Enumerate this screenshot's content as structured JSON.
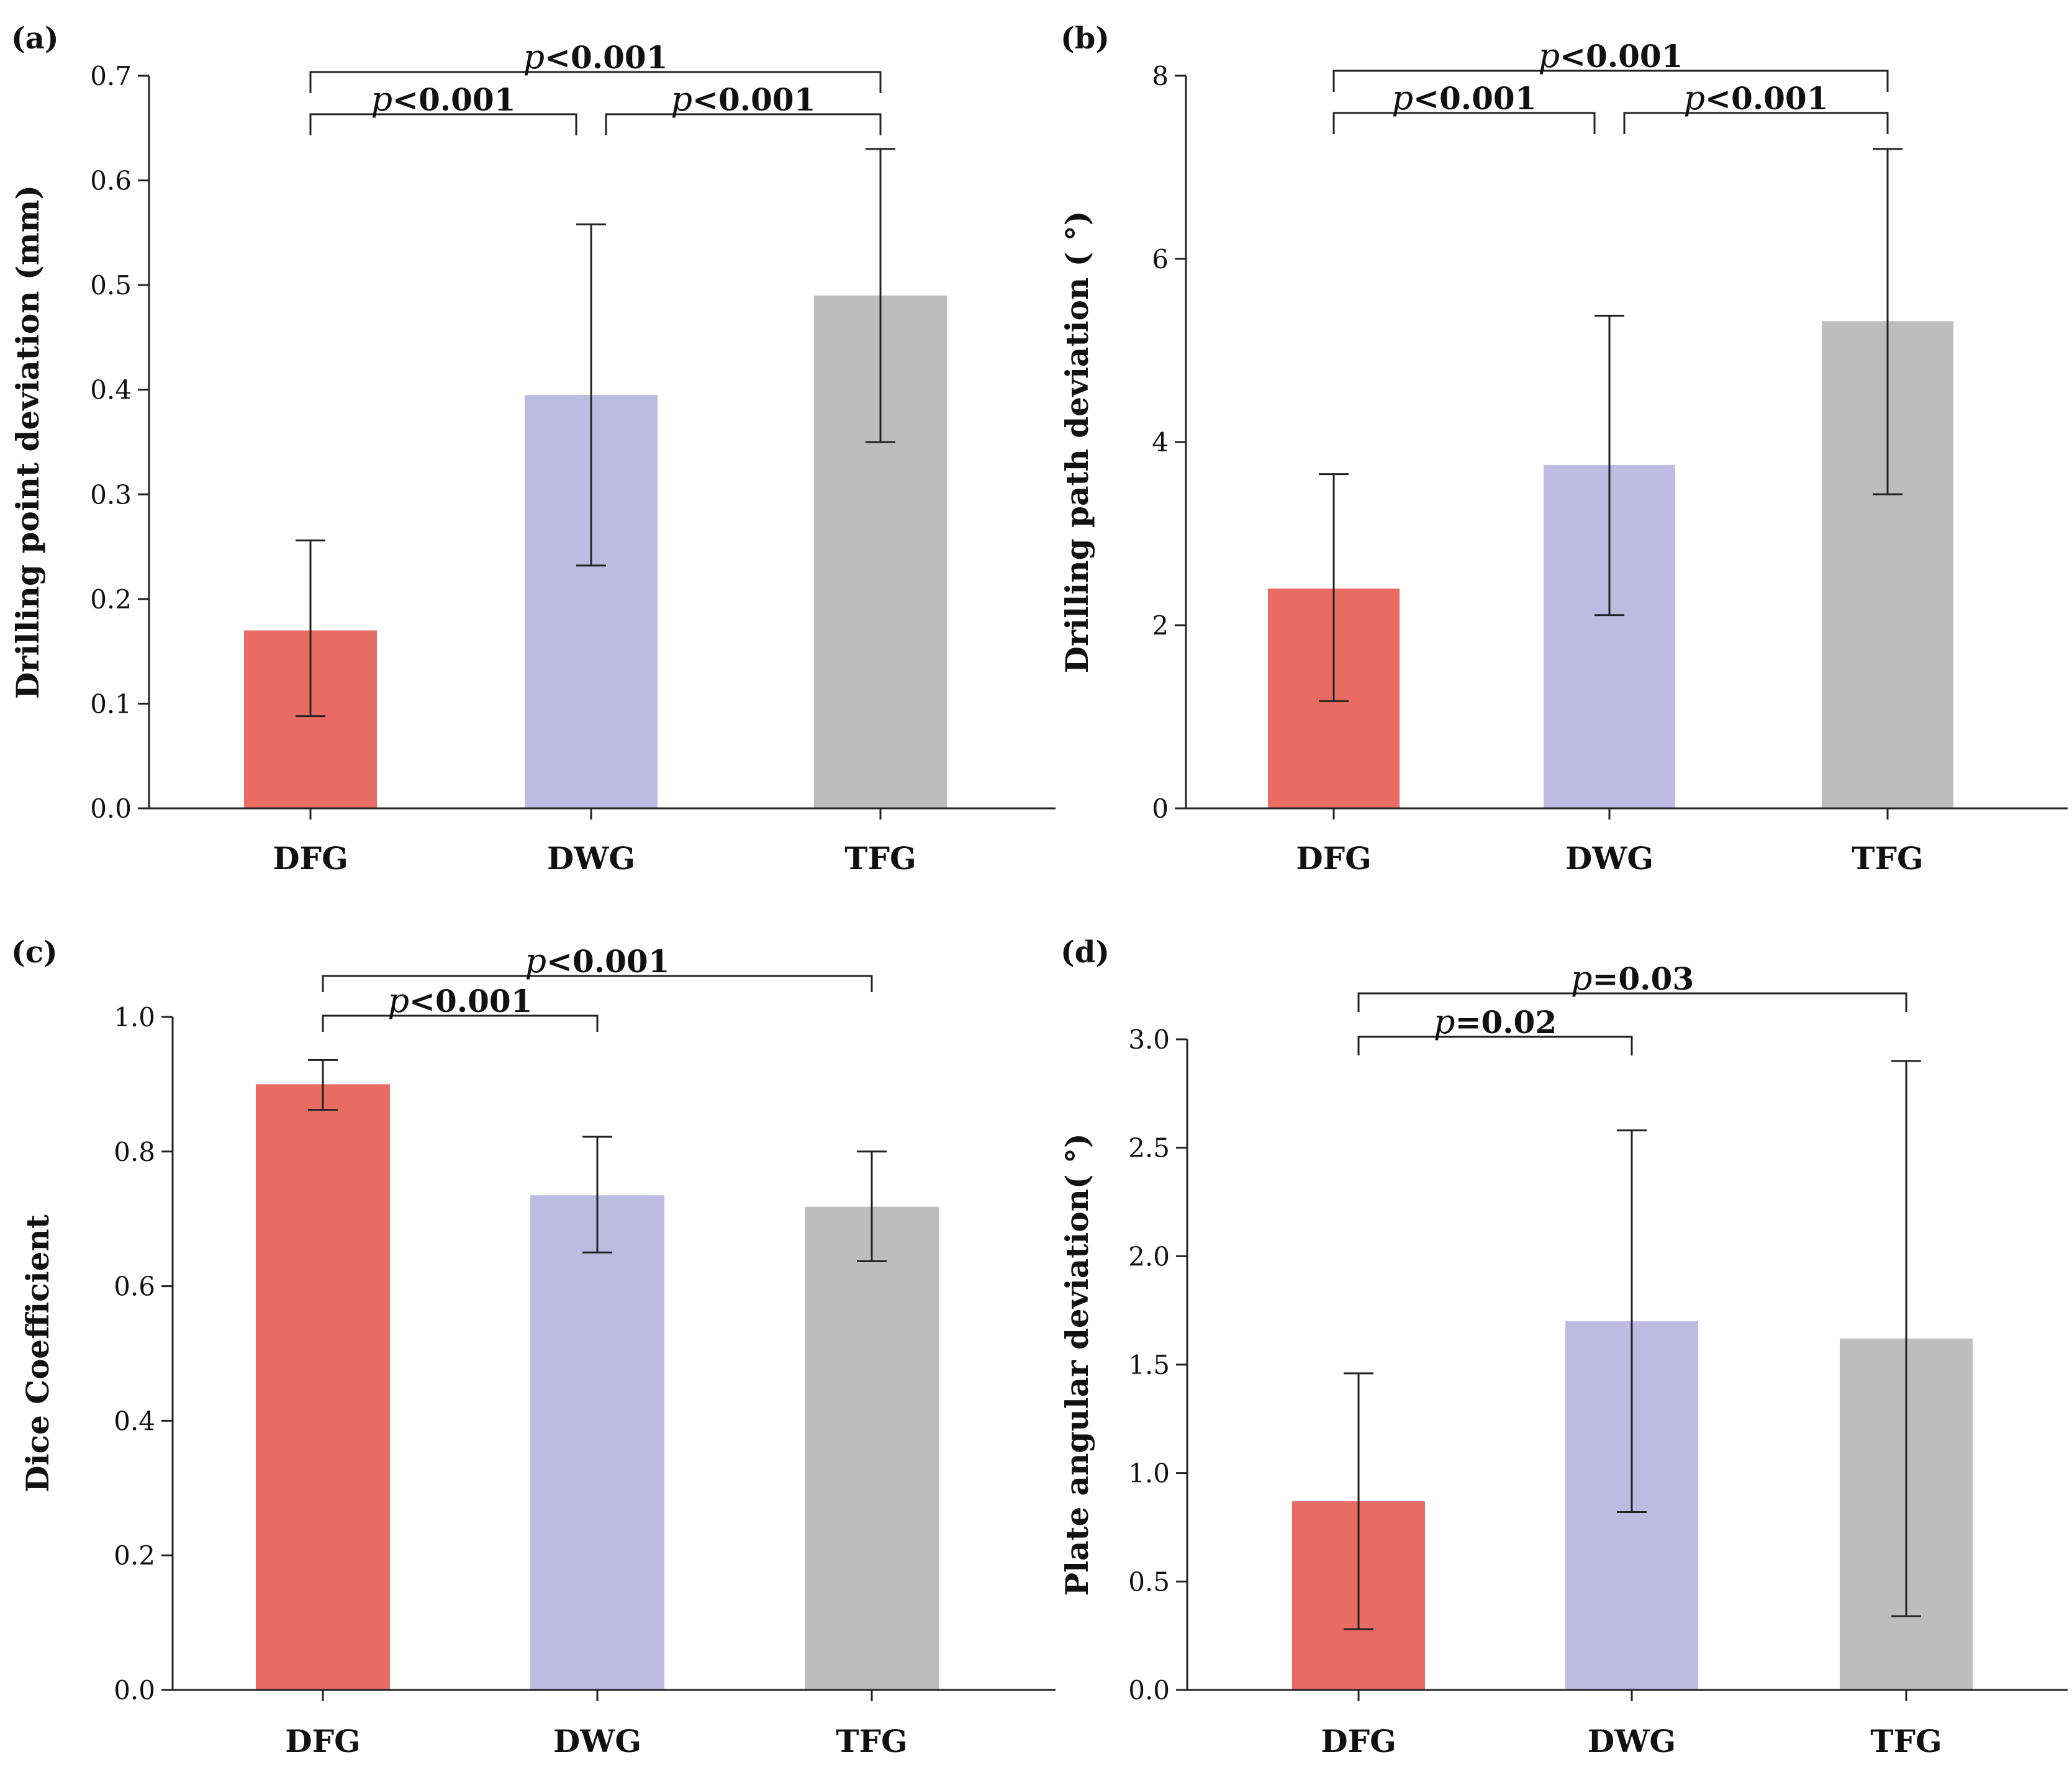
{
  "chart_data": [
    {
      "type": "bar",
      "panel_label": "(a)",
      "categories": [
        "DFG",
        "DWG",
        "TFG"
      ],
      "values": [
        0.17,
        0.395,
        0.49
      ],
      "errors_low": [
        0.088,
        0.232,
        0.35
      ],
      "errors_high": [
        0.256,
        0.558,
        0.63
      ],
      "colors": [
        "#e86c63",
        "#bdbbe2",
        "#bdbdbd"
      ],
      "ylabel": "Drilling point deviation (mm)",
      "ylim": [
        0,
        0.7
      ],
      "yticks": [
        0.0,
        0.1,
        0.2,
        0.3,
        0.4,
        0.5,
        0.6,
        0.7
      ],
      "ytick_labels": [
        "0.0",
        "0.1",
        "0.2",
        "0.3",
        "0.4",
        "0.5",
        "0.6",
        "0.7"
      ],
      "significance": [
        {
          "from": "DFG",
          "to": "DWG",
          "p_symbol": "p",
          "text": "<0.001",
          "level": 1
        },
        {
          "from": "DWG",
          "to": "TFG",
          "p_symbol": "p",
          "text": "<0.001",
          "level": 1
        },
        {
          "from": "DFG",
          "to": "TFG",
          "p_symbol": "p",
          "text": "<0.001",
          "level": 2
        }
      ]
    },
    {
      "type": "bar",
      "panel_label": "(b)",
      "categories": [
        "DFG",
        "DWG",
        "TFG"
      ],
      "values": [
        2.4,
        3.75,
        5.32
      ],
      "errors_low": [
        1.17,
        2.11,
        3.43
      ],
      "errors_high": [
        3.65,
        5.38,
        7.2
      ],
      "colors": [
        "#e86c63",
        "#bdbbe2",
        "#bdbdbd"
      ],
      "ylabel": "Drilling path deviation ( °)",
      "ylim": [
        0,
        8
      ],
      "yticks": [
        0,
        2,
        4,
        6,
        8
      ],
      "ytick_labels": [
        "0",
        "2",
        "4",
        "6",
        "8"
      ],
      "significance": [
        {
          "from": "DFG",
          "to": "DWG",
          "p_symbol": "p",
          "text": "<0.001",
          "level": 1
        },
        {
          "from": "DWG",
          "to": "TFG",
          "p_symbol": "p",
          "text": "<0.001",
          "level": 1
        },
        {
          "from": "DFG",
          "to": "TFG",
          "p_symbol": "p",
          "text": "<0.001",
          "level": 2
        }
      ]
    },
    {
      "type": "bar",
      "panel_label": "(c)",
      "categories": [
        "DFG",
        "DWG",
        "TFG"
      ],
      "values": [
        0.9,
        0.735,
        0.718
      ],
      "errors_low": [
        0.862,
        0.65,
        0.637
      ],
      "errors_high": [
        0.936,
        0.822,
        0.8
      ],
      "colors": [
        "#e86c63",
        "#bdbbe2",
        "#bdbdbd"
      ],
      "ylabel": "Dice Coefficient",
      "ylim": [
        0,
        1.0
      ],
      "yticks": [
        0.0,
        0.2,
        0.4,
        0.6,
        0.8,
        1.0
      ],
      "ytick_labels": [
        "0.0",
        "0.2",
        "0.4",
        "0.6",
        "0.8",
        "1.0"
      ],
      "significance": [
        {
          "from": "DFG",
          "to": "DWG",
          "p_symbol": "p",
          "text": "<0.001",
          "level": 1
        },
        {
          "from": "DFG",
          "to": "TFG",
          "p_symbol": "p",
          "text": "<0.001",
          "level": 2
        }
      ]
    },
    {
      "type": "bar",
      "panel_label": "(d)",
      "categories": [
        "DFG",
        "DWG",
        "TFG"
      ],
      "values": [
        0.87,
        1.7,
        1.62
      ],
      "errors_low": [
        0.28,
        0.82,
        0.34
      ],
      "errors_high": [
        1.46,
        2.58,
        2.9
      ],
      "colors": [
        "#e86c63",
        "#bdbbe2",
        "#bdbdbd"
      ],
      "ylabel": "Plate angular deviation( °)",
      "ylim": [
        0,
        3.0
      ],
      "yticks": [
        0.0,
        0.5,
        1.0,
        1.5,
        2.0,
        2.5,
        3.0
      ],
      "ytick_labels": [
        "0.0",
        "0.5",
        "1.0",
        "1.5",
        "2.0",
        "2.5",
        "3.0"
      ],
      "significance": [
        {
          "from": "DFG",
          "to": "DWG",
          "p_symbol": "p",
          "text": "=0.02",
          "level": 1
        },
        {
          "from": "DFG",
          "to": "TFG",
          "p_symbol": "p",
          "text": "=0.03",
          "level": 2
        }
      ]
    }
  ]
}
